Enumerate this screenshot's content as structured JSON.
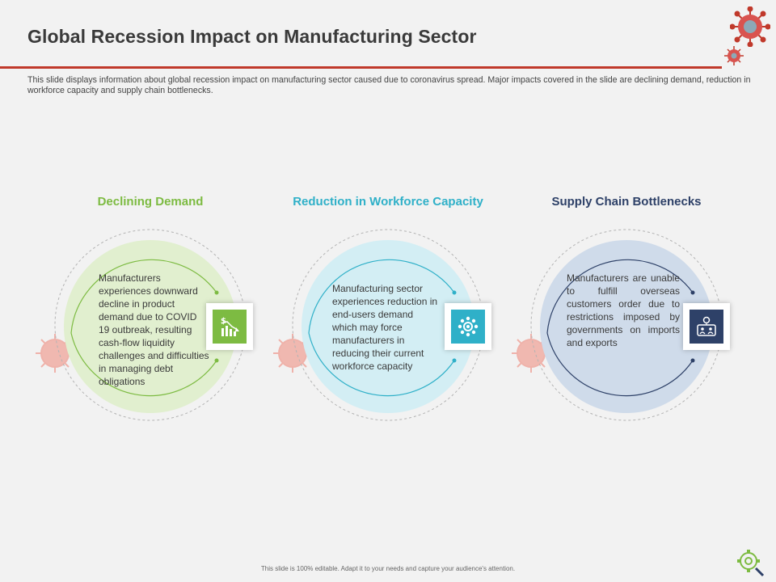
{
  "slide": {
    "title": "Global Recession Impact on Manufacturing Sector",
    "description": "This slide displays information about global recession impact on manufacturing sector caused due to coronavirus spread. Major impacts covered in the slide are declining demand, reduction in workforce capacity and supply chain bottlenecks.",
    "footer": "This slide is 100% editable. Adapt it to your needs and capture your audience's attention."
  },
  "colors": {
    "accent_red": "#c0392b",
    "green": "#7dbb42",
    "teal": "#2fb0c8",
    "navy": "#2e4168"
  },
  "impacts": [
    {
      "heading": "Declining Demand",
      "text": "Manufacturers experiences downward decline in product demand due to COVID 19 outbreak, resulting cash-flow liquidity challenges and difficulties in managing debt obligations",
      "icon": "declining-chart-icon"
    },
    {
      "heading": "Reduction in Workforce Capacity",
      "text": "Manufacturing sector experiences reduction in end-users demand which may force manufacturers in reducing their current workforce capacity",
      "icon": "workforce-gear-icon"
    },
    {
      "heading": "Supply Chain Bottlenecks",
      "text": "Manufacturers are unable to fulfill overseas customers order due to restrictions imposed by governments on imports and exports",
      "icon": "supply-network-icon"
    }
  ]
}
